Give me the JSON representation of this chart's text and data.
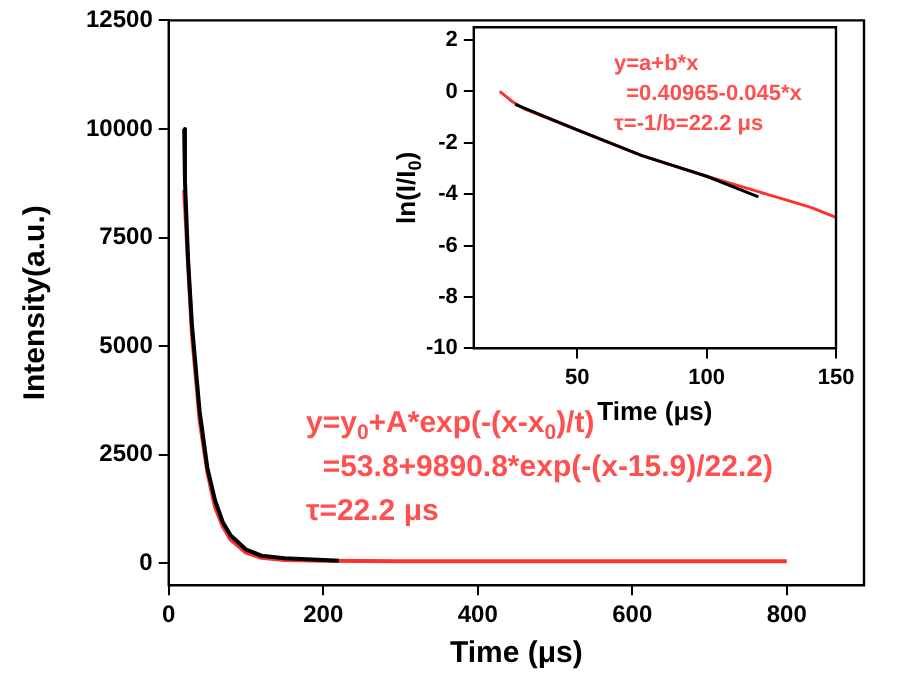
{
  "chart_data": [
    {
      "type": "line",
      "xlabel": "Time (μs)",
      "ylabel": "Intensity(a.u.)",
      "xlim": [
        0,
        900
      ],
      "xticks": [
        0,
        200,
        400,
        600,
        800
      ],
      "ylim": [
        -500,
        12500
      ],
      "yticks": [
        0,
        2500,
        5000,
        7500,
        10000,
        12500
      ],
      "grid": false,
      "legend": false,
      "annotations": [
        "y=y$_{0}$+A*exp(-(x-x$_{0}$)/t)",
        "  =53.8+9890.8*exp(-(x-15.9)/22.2)",
        "τ=22.2 μs"
      ],
      "series": [
        {
          "color": "#000000",
          "x": [
            20,
            21,
            25,
            30,
            40,
            50,
            60,
            70,
            80,
            100,
            120,
            150,
            200,
            220
          ],
          "values": [
            10000,
            8800,
            7000,
            5500,
            3500,
            2200,
            1450,
            950,
            650,
            320,
            180,
            120,
            80,
            60
          ]
        },
        {
          "color": "#ff3030",
          "x": [
            20,
            25,
            30,
            40,
            50,
            60,
            70,
            80,
            100,
            120,
            150,
            200,
            300,
            500,
            800
          ],
          "values": [
            8600,
            6900,
            5300,
            3300,
            2100,
            1300,
            850,
            550,
            250,
            130,
            80,
            60,
            50,
            50,
            50
          ]
        }
      ]
    },
    {
      "type": "line",
      "xlabel": "Time (μs)",
      "ylabel": "ln(I/I$_{0}$)",
      "xlim": [
        10,
        150
      ],
      "xticks": [
        50,
        100,
        150
      ],
      "ylim": [
        -10,
        2.5
      ],
      "yticks": [
        -10,
        -8,
        -6,
        -4,
        -2,
        0,
        2
      ],
      "grid": false,
      "legend": false,
      "annotations": [
        "y=a+b*x",
        "  =0.40965-0.045*x",
        "τ=-1/b=22.2 μs"
      ],
      "series": [
        {
          "color": "#000000",
          "x": [
            26,
            50,
            75,
            100,
            120
          ],
          "values": [
            -0.5,
            -1.5,
            -2.5,
            -3.3,
            -4.1
          ]
        },
        {
          "color": "#ff3030",
          "x": [
            20,
            25,
            30,
            50,
            75,
            100,
            120,
            130,
            140,
            150
          ],
          "values": [
            0,
            -0.4,
            -0.7,
            -1.5,
            -2.5,
            -3.3,
            -3.9,
            -4.2,
            -4.5,
            -4.9
          ]
        }
      ]
    }
  ]
}
